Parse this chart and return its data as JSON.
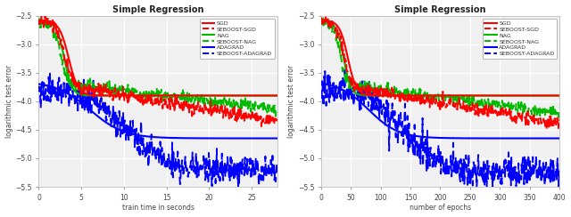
{
  "title": "Simple Regression",
  "ylabel": "logarithmic test error",
  "xlabel_left": "train time in seconds",
  "xlabel_right": "number of epochs",
  "ylim": [
    -5.5,
    -2.5
  ],
  "xlim_left": [
    0,
    28
  ],
  "xlim_right": [
    0,
    400
  ],
  "yticks": [
    -5.5,
    -5.0,
    -4.5,
    -4.0,
    -3.5,
    -3.0,
    -2.5
  ],
  "xticks_left": [
    0,
    5,
    10,
    15,
    20,
    25
  ],
  "xticks_right": [
    0,
    50,
    100,
    150,
    200,
    250,
    300,
    350,
    400
  ],
  "colors": {
    "sgd": "#ff0000",
    "nag": "#00bb00",
    "adagrad": "#0000ff"
  },
  "legend_labels": [
    "SGD",
    "SEBOOST-SGD",
    "NAG",
    "SEBOOST-NAG",
    "ADAGRAD",
    "SEBOOST-ADAGRAD"
  ],
  "bg_color": "#f0f0f0",
  "grid_color": "#ffffff"
}
